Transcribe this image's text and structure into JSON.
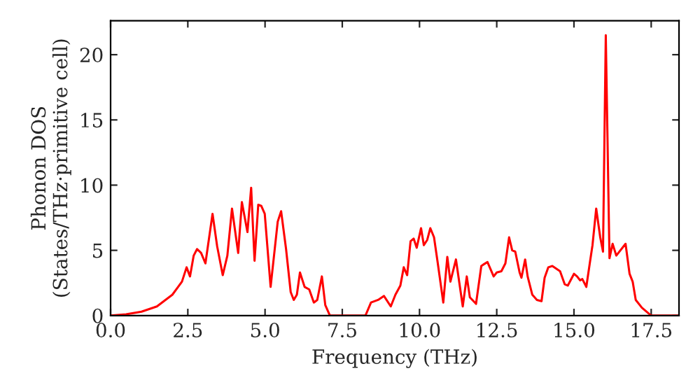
{
  "chart_data": {
    "type": "line",
    "xlabel": "Frequency (THz)",
    "ylabel": "Phonon DOS\n(States/THz·primitive cell)",
    "xlim": [
      0,
      18.4
    ],
    "ylim": [
      0,
      22.6
    ],
    "xticks": [
      {
        "value": 0,
        "label": "0.0"
      },
      {
        "value": 2.5,
        "label": "2.5"
      },
      {
        "value": 5,
        "label": "5.0"
      },
      {
        "value": 7.5,
        "label": "7.5"
      },
      {
        "value": 10,
        "label": "10.0"
      },
      {
        "value": 12.5,
        "label": "12.5"
      },
      {
        "value": 15,
        "label": "15.0"
      },
      {
        "value": 17.5,
        "label": "17.5"
      }
    ],
    "yticks": [
      0,
      5,
      10,
      15,
      20
    ],
    "grid": false,
    "marker": "none",
    "line_style": "solid",
    "series": [
      {
        "color": "#ff0000",
        "x": [
          0,
          0.5,
          1.0,
          1.5,
          2.0,
          2.31,
          2.46,
          2.57,
          2.69,
          2.8,
          2.93,
          3.07,
          3.3,
          3.45,
          3.63,
          3.78,
          3.93,
          4.13,
          4.25,
          4.43,
          4.55,
          4.66,
          4.78,
          4.88,
          4.99,
          5.18,
          5.41,
          5.52,
          5.68,
          5.83,
          5.93,
          6.03,
          6.13,
          6.28,
          6.43,
          6.58,
          6.69,
          6.84,
          6.95,
          7.1,
          8.25,
          8.43,
          8.66,
          8.85,
          9.07,
          9.22,
          9.38,
          9.49,
          9.6,
          9.71,
          9.81,
          9.91,
          10.05,
          10.14,
          10.25,
          10.35,
          10.47,
          10.58,
          10.77,
          10.9,
          11.0,
          11.18,
          11.4,
          11.53,
          11.63,
          11.83,
          12.0,
          12.06,
          12.2,
          12.4,
          12.5,
          12.65,
          12.78,
          12.9,
          13.0,
          13.1,
          13.24,
          13.3,
          13.42,
          13.5,
          13.65,
          13.8,
          13.95,
          14.05,
          14.17,
          14.3,
          14.55,
          14.7,
          14.8,
          15.0,
          15.1,
          15.2,
          15.27,
          15.4,
          15.53,
          15.6,
          15.72,
          15.85,
          15.94,
          16.03,
          16.15,
          16.25,
          16.37,
          16.67,
          16.8,
          16.9,
          17.0,
          17.2,
          17.4,
          17.5,
          18.4
        ],
        "values": [
          0,
          0.1,
          0.3,
          0.7,
          1.6,
          2.6,
          3.7,
          3.0,
          4.6,
          5.1,
          4.8,
          4.0,
          7.8,
          5.3,
          3.1,
          4.6,
          8.2,
          4.8,
          8.7,
          6.4,
          9.8,
          4.2,
          8.5,
          8.4,
          7.8,
          2.2,
          7.2,
          8.0,
          5.1,
          1.8,
          1.2,
          1.6,
          3.3,
          2.2,
          2.0,
          1.0,
          1.2,
          3.0,
          0.8,
          0,
          0,
          1.0,
          1.2,
          1.5,
          0.7,
          1.6,
          2.3,
          3.7,
          3.1,
          5.7,
          5.9,
          5.2,
          6.7,
          5.4,
          5.8,
          6.7,
          6.0,
          4.2,
          1.0,
          4.5,
          2.6,
          4.3,
          0.7,
          3.0,
          1.4,
          0.9,
          3.8,
          3.9,
          4.1,
          3.0,
          3.3,
          3.4,
          4.0,
          6.0,
          5.0,
          4.9,
          3.3,
          2.9,
          4.3,
          3.0,
          1.6,
          1.2,
          1.1,
          2.9,
          3.7,
          3.8,
          3.4,
          2.4,
          2.3,
          3.2,
          3.0,
          2.7,
          2.8,
          2.2,
          4.3,
          5.4,
          8.2,
          6.0,
          4.9,
          21.5,
          4.4,
          5.5,
          4.6,
          5.5,
          3.2,
          2.6,
          1.2,
          0.6,
          0.2,
          0,
          0
        ]
      }
    ]
  }
}
